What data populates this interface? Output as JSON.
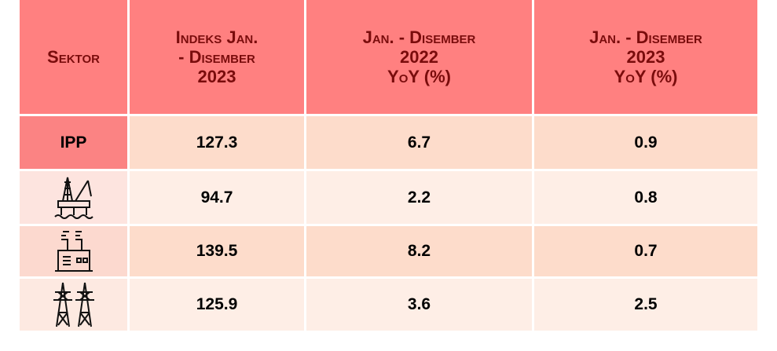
{
  "table": {
    "header": [
      "Sektor",
      "Indeks Jan.\n- Disember\n2023",
      "Jan. - Disember\n2022\nYoY (%)",
      "Jan. - Disember\n2023\nYoY (%)"
    ],
    "rows": [
      {
        "sektor": "IPP",
        "cells": [
          127.3,
          6.7,
          0.9
        ]
      },
      {
        "cells": [
          94.7,
          2.2,
          0.8
        ]
      },
      {
        "cells": [
          139.5,
          8.2,
          0.7
        ]
      },
      {
        "cells": [
          125.9,
          3.6,
          2.5
        ]
      }
    ]
  }
}
